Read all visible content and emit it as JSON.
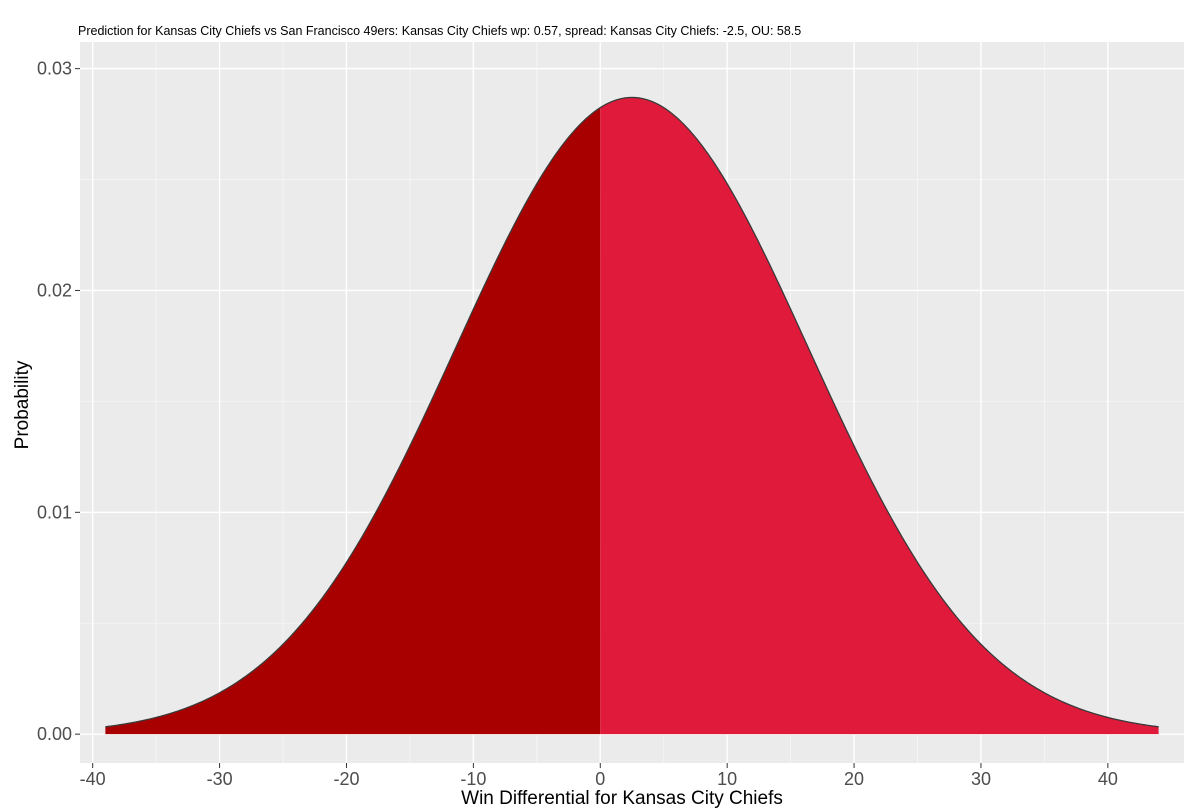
{
  "chart_data": {
    "type": "area",
    "title": "Prediction for Kansas City Chiefs vs San Francisco 49ers:  Kansas City Chiefs wp: 0.57, spread: Kansas City Chiefs:  -2.5, OU: 58.5",
    "xlabel": "Win Differential for Kansas City Chiefs",
    "ylabel": "Probability",
    "xlim": [
      -41,
      46
    ],
    "ylim": [
      -0.0013,
      0.0312
    ],
    "x_ticks": [
      -40,
      -30,
      -20,
      -10,
      0,
      10,
      20,
      30,
      40
    ],
    "y_ticks": [
      0.0,
      0.01,
      0.02,
      0.03
    ],
    "x_tick_labels": [
      "-40",
      "-30",
      "-20",
      "-10",
      "0",
      "10",
      "20",
      "30",
      "40"
    ],
    "y_tick_labels": [
      "0.00",
      "0.01",
      "0.02",
      "0.03"
    ],
    "distribution": {
      "family": "normal",
      "mean": 2.5,
      "sd": 13.9
    },
    "x_range": [
      -39,
      44
    ],
    "split_at": 0,
    "series": [
      {
        "x_from": -39,
        "x_to": 0,
        "fill": "#a80000"
      },
      {
        "x_from": 0,
        "x_to": 44,
        "fill": "#e01a3a"
      }
    ],
    "outline_color": "#3a3a3a",
    "panel_background": "#ebebeb",
    "grid": true
  }
}
